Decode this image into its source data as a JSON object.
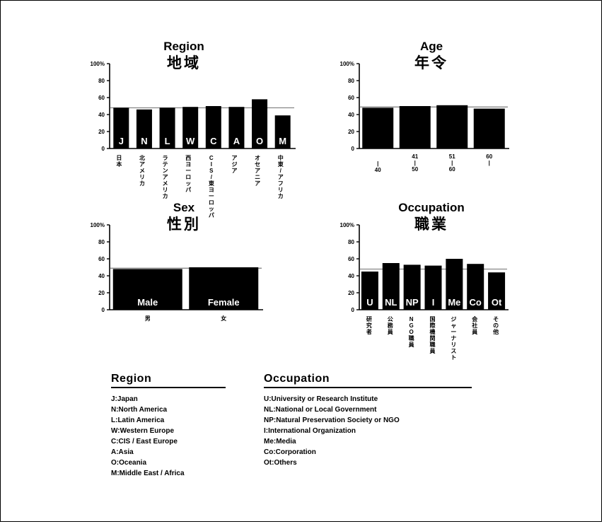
{
  "charts": [
    {
      "id": "region",
      "type": "bar",
      "title": "Region",
      "title_jp": "地域",
      "yticks": [
        "0",
        "20",
        "40",
        "60",
        "80",
        "100%"
      ],
      "ylim": [
        0,
        100
      ],
      "reference_line": 48,
      "categories": [
        "日本",
        "北アメリカ",
        "ラテンアメリカ",
        "西ヨーロッパ",
        "CIS/東ヨーロッパ",
        "アジア",
        "オセアニア",
        "中東/アフリカ"
      ],
      "bar_labels": [
        "J",
        "N",
        "L",
        "W",
        "C",
        "A",
        "O",
        "M"
      ],
      "values": [
        48,
        46,
        48,
        49,
        50,
        49,
        58,
        39
      ],
      "bar_color": "#000000"
    },
    {
      "id": "age",
      "type": "bar",
      "title": "Age",
      "title_jp": "年令",
      "yticks": [
        "0",
        "20",
        "40",
        "60",
        "80",
        "100%"
      ],
      "ylim": [
        0,
        100
      ],
      "reference_line": 49,
      "categories": [
        "|\n40",
        "41\n|\n50",
        "51\n|\n60",
        "60\n|"
      ],
      "bar_labels": [
        "",
        "",
        "",
        ""
      ],
      "values": [
        48,
        50,
        51,
        47
      ],
      "bar_color": "#000000"
    },
    {
      "id": "sex",
      "type": "bar",
      "title": "Sex",
      "title_jp": "性別",
      "yticks": [
        "0",
        "20",
        "40",
        "60",
        "80",
        "100%"
      ],
      "ylim": [
        0,
        100
      ],
      "reference_line": 49,
      "categories": [
        "男",
        "女"
      ],
      "bar_labels": [
        "Male",
        "Female"
      ],
      "values": [
        48,
        50
      ],
      "bar_color": "#000000"
    },
    {
      "id": "occupation",
      "type": "bar",
      "title": "Occupation",
      "title_jp": "職業",
      "yticks": [
        "0",
        "20",
        "40",
        "60",
        "80",
        "100%"
      ],
      "ylim": [
        0,
        100
      ],
      "reference_line": 48,
      "categories": [
        "研究者",
        "公務員",
        "NGO職員",
        "国際機関職員",
        "ジャーナリスト",
        "会社員",
        "その他"
      ],
      "bar_labels": [
        "U",
        "NL",
        "NP",
        "I",
        "Me",
        "Co",
        "Ot"
      ],
      "values": [
        45,
        55,
        53,
        52,
        60,
        54,
        44
      ],
      "bar_color": "#000000"
    }
  ],
  "legends": {
    "region": {
      "heading": "Region",
      "items": [
        "J:Japan",
        "N:North America",
        "L:Latin America",
        "W:Western Europe",
        "C:CIS / East Europe",
        "A:Asia",
        "O:Oceania",
        "M:Middle East / Africa"
      ]
    },
    "occupation": {
      "heading": "Occupation",
      "items": [
        "U:University or Research Institute",
        "NL:National or Local Government",
        "NP:Natural Preservation Society or NGO",
        "I:International Organization",
        "Me:Media",
        "Co:Corporation",
        "Ot:Others"
      ]
    }
  }
}
